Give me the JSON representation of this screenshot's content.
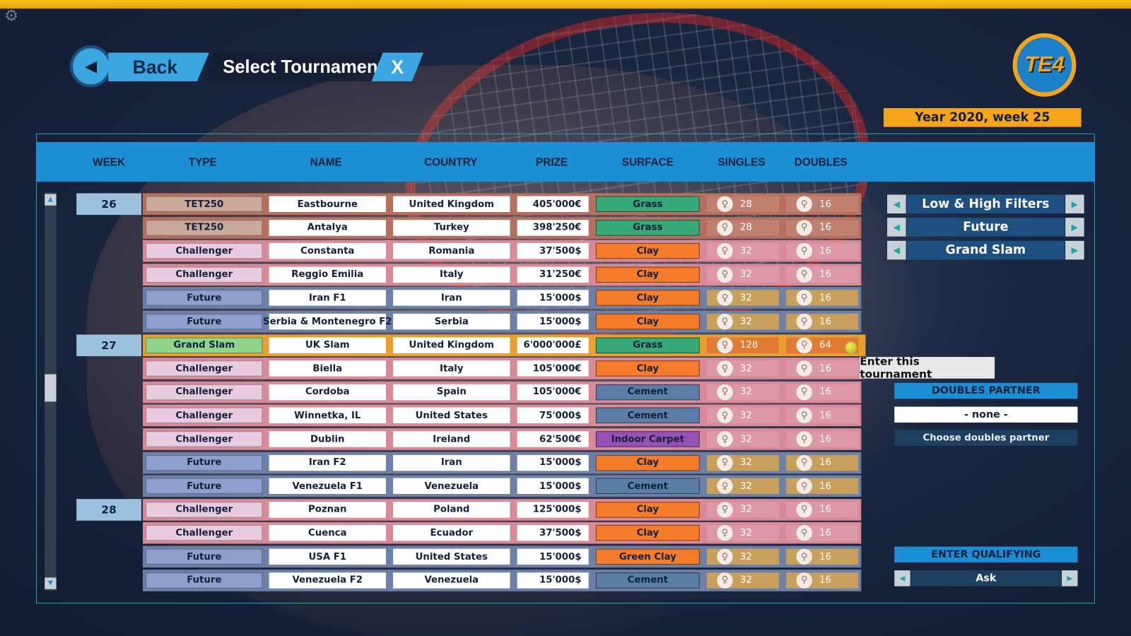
{
  "header": {
    "title": "Select Tournament",
    "back_label": "Back",
    "close_label": "X",
    "logo_text": "TE4",
    "date": "Year 2020, week 25"
  },
  "columns": [
    "WEEK",
    "TYPE",
    "NAME",
    "COUNTRY",
    "PRIZE",
    "SURFACE",
    "SINGLES",
    "DOUBLES"
  ],
  "colors": {
    "types": {
      "TET250": {
        "row": "#b8705e",
        "cell": "#caa89a"
      },
      "Challenger": {
        "row": "#d88a98",
        "cell": "#e9cbe0"
      },
      "Future": {
        "row": "#6d80a8",
        "cell": "#8e9fcd",
        "draws": "#c8a05c"
      },
      "Grand Slam": {
        "row": "#e0862c",
        "cell": "#92d48c"
      }
    },
    "surfaces": {
      "Grass": "#38a878",
      "Clay": "#f47c2a",
      "Cement": "#5a7ea6",
      "Indoor Carpet": "#9452b4",
      "Green Clay": "#f47c2a"
    }
  },
  "rows": [
    {
      "week": "26",
      "type": "TET250",
      "name": "Eastbourne",
      "country": "United Kingdom",
      "prize": "405'000€",
      "surface": "Grass",
      "singles": "28",
      "doubles": "16"
    },
    {
      "type": "TET250",
      "name": "Antalya",
      "country": "Turkey",
      "prize": "398'250€",
      "surface": "Grass",
      "singles": "28",
      "doubles": "16"
    },
    {
      "type": "Challenger",
      "name": "Constanta",
      "country": "Romania",
      "prize": "37'500$",
      "surface": "Clay",
      "singles": "32",
      "doubles": "16"
    },
    {
      "type": "Challenger",
      "name": "Reggio Emilia",
      "country": "Italy",
      "prize": "31'250€",
      "surface": "Clay",
      "singles": "32",
      "doubles": "16"
    },
    {
      "type": "Future",
      "name": "Iran F1",
      "country": "Iran",
      "prize": "15'000$",
      "surface": "Clay",
      "singles": "32",
      "doubles": "16"
    },
    {
      "type": "Future",
      "name": "Serbia & Montenegro F2",
      "country": "Serbia",
      "prize": "15'000$",
      "surface": "Clay",
      "singles": "32",
      "doubles": "16"
    },
    {
      "week": "27",
      "type": "Grand Slam",
      "name": "UK Slam",
      "country": "United Kingdom",
      "prize": "6'000'000£",
      "surface": "Grass",
      "singles": "128",
      "doubles": "64",
      "selected": true
    },
    {
      "type": "Challenger",
      "name": "Biella",
      "country": "Italy",
      "prize": "105'000€",
      "surface": "Clay",
      "singles": "32",
      "doubles": "16"
    },
    {
      "type": "Challenger",
      "name": "Cordoba",
      "country": "Spain",
      "prize": "105'000€",
      "surface": "Cement",
      "singles": "32",
      "doubles": "16"
    },
    {
      "type": "Challenger",
      "name": "Winnetka, IL",
      "country": "United States",
      "prize": "75'000$",
      "surface": "Cement",
      "singles": "32",
      "doubles": "16"
    },
    {
      "type": "Challenger",
      "name": "Dublin",
      "country": "Ireland",
      "prize": "62'500€",
      "surface": "Indoor Carpet",
      "singles": "32",
      "doubles": "16"
    },
    {
      "type": "Future",
      "name": "Iran F2",
      "country": "Iran",
      "prize": "15'000$",
      "surface": "Clay",
      "singles": "32",
      "doubles": "16"
    },
    {
      "type": "Future",
      "name": "Venezuela F1",
      "country": "Venezuela",
      "prize": "15'000$",
      "surface": "Cement",
      "singles": "32",
      "doubles": "16"
    },
    {
      "week": "28",
      "type": "Challenger",
      "name": "Poznan",
      "country": "Poland",
      "prize": "125'000$",
      "surface": "Clay",
      "singles": "32",
      "doubles": "16"
    },
    {
      "type": "Challenger",
      "name": "Cuenca",
      "country": "Ecuador",
      "prize": "37'500$",
      "surface": "Clay",
      "singles": "32",
      "doubles": "16"
    },
    {
      "type": "Future",
      "name": "USA F1",
      "country": "United States",
      "prize": "15'000$",
      "surface": "Green Clay",
      "singles": "32",
      "doubles": "16"
    },
    {
      "type": "Future",
      "name": "Venezuela F2",
      "country": "Venezuela",
      "prize": "15'000$",
      "surface": "Cement",
      "singles": "32",
      "doubles": "16"
    }
  ],
  "tooltip": "Enter this tournament",
  "filters": [
    "Low & High Filters",
    "Future",
    "Grand Slam"
  ],
  "doubles_partner": {
    "heading": "DOUBLES PARTNER",
    "value": "- none -",
    "choose_label": "Choose doubles partner"
  },
  "qualifying": {
    "heading": "ENTER QUALIFYING",
    "value": "Ask"
  }
}
